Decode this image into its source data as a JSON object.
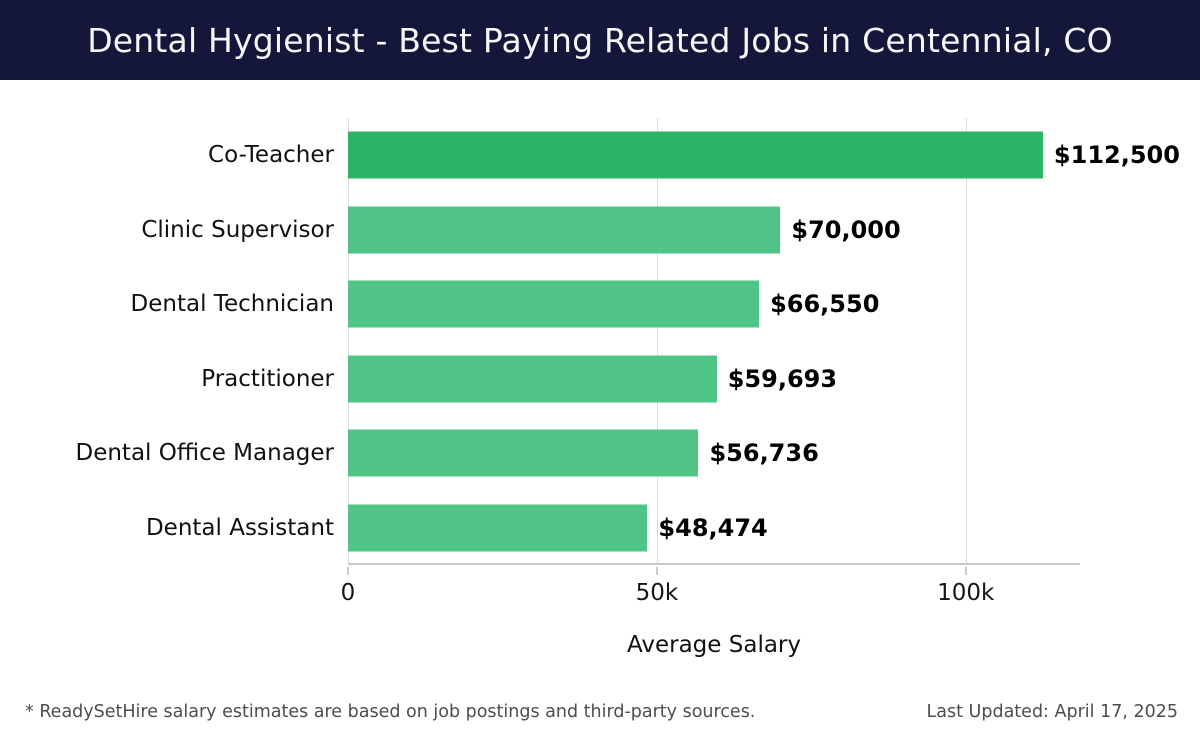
{
  "header": {
    "title": "Dental Hygienist - Best Paying Related Jobs in Centennial, CO"
  },
  "chart_data": {
    "type": "bar",
    "orientation": "horizontal",
    "title": "Dental Hygienist - Best Paying Related Jobs in Centennial, CO",
    "categories": [
      "Co-Teacher",
      "Clinic Supervisor",
      "Dental Technician",
      "Practitioner",
      "Dental Office Manager",
      "Dental Assistant"
    ],
    "values": [
      112500,
      70000,
      66550,
      59693,
      56736,
      48474
    ],
    "value_labels": [
      "$112,500",
      "$70,000",
      "$66,550",
      "$59,693",
      "$56,736",
      "$48,474"
    ],
    "xlabel": "Average Salary",
    "xlim": [
      0,
      118500
    ],
    "x_ticks": [
      {
        "value": 0,
        "label": "0"
      },
      {
        "value": 50000,
        "label": "50k"
      },
      {
        "value": 100000,
        "label": "100k"
      }
    ],
    "grid": "vertical-only",
    "legend": "none",
    "highlight_index": 0,
    "bar_colors": {
      "highlight": "#2cb567",
      "default": "#50c487"
    }
  },
  "footer": {
    "note": "* ReadySetHire salary estimates are based on job postings and third-party sources.",
    "last_updated": "Last Updated: April 17, 2025"
  },
  "colors": {
    "header_bg": "#14163a",
    "header_text": "#f6f6fb",
    "gridline": "#dcdcdc",
    "axis": "#c9c9c9",
    "label_text": "#111111",
    "footer_text": "#4d4d4d",
    "background": "#ffffff"
  }
}
